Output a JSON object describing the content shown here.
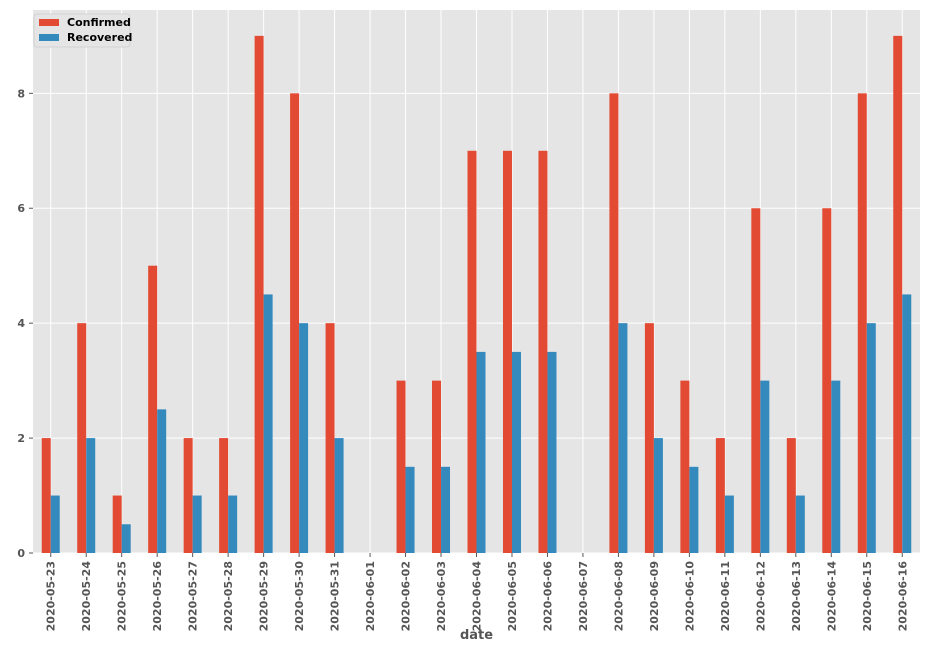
{
  "chart_data": {
    "type": "bar",
    "title": "",
    "xlabel": "date",
    "ylabel": "",
    "ylim": [
      0,
      9.45
    ],
    "yticks": [
      0,
      2,
      4,
      6,
      8
    ],
    "grid": true,
    "legend_position": "top-left",
    "categories": [
      "2020-05-23",
      "2020-05-24",
      "2020-05-25",
      "2020-05-26",
      "2020-05-27",
      "2020-05-28",
      "2020-05-29",
      "2020-05-30",
      "2020-05-31",
      "2020-06-01",
      "2020-06-02",
      "2020-06-03",
      "2020-06-04",
      "2020-06-05",
      "2020-06-06",
      "2020-06-07",
      "2020-06-08",
      "2020-06-09",
      "2020-06-10",
      "2020-06-11",
      "2020-06-12",
      "2020-06-13",
      "2020-06-14",
      "2020-06-15",
      "2020-06-16"
    ],
    "series": [
      {
        "name": "Confirmed",
        "color": "#E24A33",
        "values": [
          2,
          4,
          1,
          5,
          2,
          2,
          9,
          8,
          4,
          0,
          3,
          3,
          7,
          7,
          7,
          0,
          8,
          4,
          3,
          2,
          6,
          2,
          6,
          8,
          9
        ]
      },
      {
        "name": "Recovered",
        "color": "#348ABD",
        "values": [
          1,
          2,
          0.5,
          2.5,
          1,
          1,
          4.5,
          4,
          2,
          0,
          1.5,
          1.5,
          3.5,
          3.5,
          3.5,
          0,
          4,
          2,
          1.5,
          1,
          3,
          1,
          3,
          4,
          4.5
        ]
      }
    ]
  },
  "style": {
    "plot_background": "#E5E5E5",
    "grid_color": "#FFFFFF"
  }
}
